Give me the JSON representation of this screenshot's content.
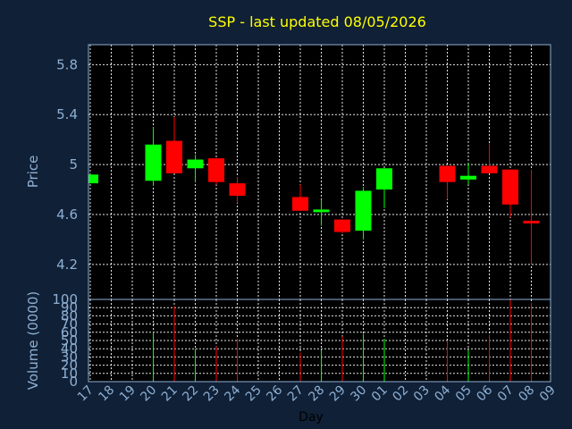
{
  "chart_data": {
    "type": "candlestick",
    "title": "SSP - last updated 08/05/2026",
    "xlabel": "Day",
    "price_panel": {
      "ylabel": "Price",
      "ylim": [
        3.92,
        5.96
      ],
      "yticks": [
        "4.2",
        "4.6",
        "5",
        "5.4",
        "5.8"
      ],
      "grid": true
    },
    "volume_panel": {
      "ylabel": "Volume (0000)",
      "ylim": [
        0,
        100
      ],
      "yticks": [
        "0",
        "10",
        "20",
        "30",
        "40",
        "50",
        "60",
        "70",
        "80",
        "90",
        "100"
      ],
      "grid": true
    },
    "x_ticks": [
      "17",
      "18",
      "19",
      "20",
      "21",
      "22",
      "23",
      "24",
      "25",
      "26",
      "27",
      "28",
      "29",
      "30",
      "01",
      "02",
      "03",
      "04",
      "05",
      "06",
      "07",
      "08",
      "09"
    ],
    "candles": [
      {
        "day": "17",
        "open": 4.85,
        "high": 4.92,
        "low": 4.85,
        "close": 4.92,
        "volume": 0
      },
      {
        "day": "20",
        "open": 4.87,
        "high": 5.3,
        "low": 4.83,
        "close": 5.16,
        "volume": 60
      },
      {
        "day": "21",
        "open": 5.19,
        "high": 5.38,
        "low": 4.93,
        "close": 4.93,
        "volume": 92
      },
      {
        "day": "22",
        "open": 4.97,
        "high": 5.08,
        "low": 4.86,
        "close": 5.04,
        "volume": 40
      },
      {
        "day": "23",
        "open": 5.05,
        "high": 5.05,
        "low": 4.84,
        "close": 4.86,
        "volume": 43
      },
      {
        "day": "24",
        "open": 4.85,
        "high": 4.9,
        "low": 4.69,
        "close": 4.75,
        "volume": 52
      },
      {
        "day": "27",
        "open": 4.74,
        "high": 4.84,
        "low": 4.63,
        "close": 4.63,
        "volume": 35
      },
      {
        "day": "28",
        "open": 4.62,
        "high": 4.72,
        "low": 4.51,
        "close": 4.64,
        "volume": 38
      },
      {
        "day": "29",
        "open": 4.56,
        "high": 4.56,
        "low": 4.45,
        "close": 4.46,
        "volume": 55
      },
      {
        "day": "30",
        "open": 4.47,
        "high": 4.82,
        "low": 4.4,
        "close": 4.79,
        "volume": 58
      },
      {
        "day": "01",
        "open": 4.8,
        "high": 4.97,
        "low": 4.65,
        "close": 4.97,
        "volume": 52
      },
      {
        "day": "04",
        "open": 4.99,
        "high": 4.99,
        "low": 4.72,
        "close": 4.86,
        "volume": 50
      },
      {
        "day": "05",
        "open": 4.88,
        "high": 5.01,
        "low": 4.84,
        "close": 4.91,
        "volume": 38
      },
      {
        "day": "06",
        "open": 4.99,
        "high": 5.17,
        "low": 4.93,
        "close": 4.93,
        "volume": 57
      },
      {
        "day": "07",
        "open": 4.96,
        "high": 4.96,
        "low": 4.58,
        "close": 4.68,
        "volume": 100
      },
      {
        "day": "08",
        "open": 4.55,
        "high": 4.96,
        "low": 4.2,
        "close": 4.53,
        "volume": 96
      }
    ],
    "colors": {
      "up": "#00ff00",
      "down": "#ff0000",
      "background": "#102036",
      "panel": "#000000",
      "title": "#ffff00",
      "text": "#8eb0d4"
    }
  }
}
